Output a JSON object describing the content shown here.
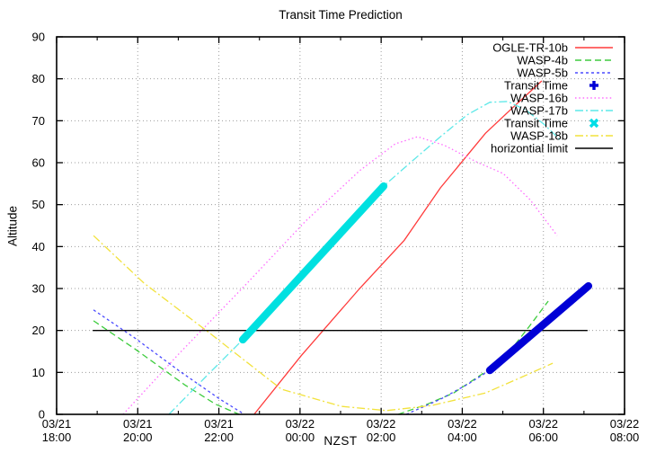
{
  "title": "Transit Time Prediction",
  "axes": {
    "xlabel": "NZST",
    "ylabel": "Altitude",
    "ylim": [
      0,
      90
    ],
    "yticks": [
      0,
      10,
      20,
      30,
      40,
      50,
      60,
      70,
      80,
      90
    ],
    "xticks": [
      {
        "date": "03/21",
        "time": "18:00",
        "hour": 0
      },
      {
        "date": "03/21",
        "time": "20:00",
        "hour": 2
      },
      {
        "date": "03/21",
        "time": "22:00",
        "hour": 4
      },
      {
        "date": "03/22",
        "time": "00:00",
        "hour": 6
      },
      {
        "date": "03/22",
        "time": "02:00",
        "hour": 8
      },
      {
        "date": "03/22",
        "time": "04:00",
        "hour": 10
      },
      {
        "date": "03/22",
        "time": "06:00",
        "hour": 12
      },
      {
        "date": "03/22",
        "time": "08:00",
        "hour": 14
      }
    ],
    "minor_xticks_hours": [
      1,
      3,
      5,
      7,
      9,
      11,
      13
    ],
    "grid": true
  },
  "style": {
    "background": "#ffffff",
    "axis_color": "#000000",
    "grid_color": "#9d9d9d",
    "text_color": "#000000"
  },
  "legend": {
    "position": "top-right-inside",
    "items": [
      {
        "label": "OGLE-TR-10b",
        "kind": "line",
        "color": "#ff3b3b",
        "dash": "solid"
      },
      {
        "label": "WASP-4b",
        "kind": "line",
        "color": "#3ecc3e",
        "dash": "7,4"
      },
      {
        "label": "WASP-5b",
        "kind": "line",
        "color": "#4a4aff",
        "dash": "3,3"
      },
      {
        "label": "Transit Time",
        "kind": "marker-plus",
        "color": "#0000d6",
        "dash": "solid"
      },
      {
        "label": "WASP-16b",
        "kind": "line",
        "color": "#ff6bff",
        "dash": "1.5,2.8"
      },
      {
        "label": "WASP-17b",
        "kind": "line",
        "color": "#5ce8e8",
        "dash": "9,3,2,3"
      },
      {
        "label": "Transit Time",
        "kind": "marker-x",
        "color": "#00dde6",
        "dash": "solid"
      },
      {
        "label": "WASP-18b",
        "kind": "line",
        "color": "#f2e23c",
        "dash": "9,3,2,3"
      },
      {
        "label": "horizontial limit",
        "kind": "line",
        "color": "#000000",
        "dash": "solid"
      }
    ]
  },
  "chart_data": {
    "type": "line",
    "title": "Transit Time Prediction",
    "xlabel": "NZST",
    "ylabel": "Altitude",
    "x_unit": "hours after 03/21 18:00 NZST",
    "x_range_hours": [
      0,
      14
    ],
    "ylim": [
      0,
      90
    ],
    "series": [
      {
        "name": "OGLE-TR-10b",
        "color": "#ff3b3b",
        "dash": "solid",
        "width": 1.3,
        "segments": [
          [
            [
              4.87,
              0
            ],
            [
              6.03,
              14
            ],
            [
              7.47,
              30
            ],
            [
              8.57,
              41.5
            ],
            [
              9.46,
              54
            ],
            [
              10.57,
              67
            ],
            [
              11.23,
              73
            ],
            [
              11.96,
              79.5
            ]
          ]
        ]
      },
      {
        "name": "WASP-4b",
        "color": "#3ecc3e",
        "dash": "7,4",
        "width": 1.3,
        "segments": [
          [
            [
              0.91,
              22.3
            ],
            [
              1.93,
              15.6
            ],
            [
              3.15,
              7.1
            ],
            [
              3.92,
              2.4
            ],
            [
              4.5,
              0
            ]
          ],
          [
            [
              8.42,
              0
            ],
            [
              9.13,
              2.4
            ],
            [
              9.79,
              5.1
            ],
            [
              10.46,
              9.4
            ],
            [
              11.12,
              14.4
            ],
            [
              11.67,
              21.2
            ],
            [
              12.12,
              27
            ]
          ]
        ]
      },
      {
        "name": "WASP-5b",
        "color": "#4a4aff",
        "dash": "3,3",
        "width": 1.3,
        "segments": [
          [
            [
              0.91,
              24.9
            ],
            [
              1.93,
              18.2
            ],
            [
              3.03,
              10.3
            ],
            [
              4.03,
              3.6
            ],
            [
              4.63,
              0
            ]
          ],
          [
            [
              8.62,
              0
            ],
            [
              9.46,
              3.6
            ],
            [
              10.12,
              7.1
            ],
            [
              10.68,
              10.5
            ],
            [
              13.11,
              30.6
            ]
          ]
        ]
      },
      {
        "name": "WASP-16b",
        "color": "#ff6bff",
        "dash": "1.5,2.8",
        "width": 1.3,
        "segments": [
          [
            [
              1.64,
              0
            ],
            [
              3.03,
              14.6
            ],
            [
              4.59,
              30.2
            ],
            [
              6.14,
              46.1
            ],
            [
              7.47,
              58.1
            ],
            [
              8.35,
              64.5
            ],
            [
              8.9,
              66.2
            ],
            [
              9.57,
              64.1
            ],
            [
              10.35,
              60.2
            ],
            [
              11.01,
              57.4
            ],
            [
              11.67,
              51.2
            ],
            [
              12.34,
              42.6
            ]
          ]
        ]
      },
      {
        "name": "WASP-17b",
        "color": "#5ce8e8",
        "dash": "9,3,2,3",
        "width": 1.3,
        "segments": [
          [
            [
              2.77,
              0
            ],
            [
              3.7,
              9.2
            ],
            [
              4.59,
              17.8
            ],
            [
              6.36,
              37.1
            ],
            [
              8.06,
              54.4
            ],
            [
              8.79,
              60.6
            ],
            [
              9.46,
              66.2
            ],
            [
              10.12,
              71.4
            ],
            [
              10.68,
              74.4
            ],
            [
              11.12,
              74.6
            ],
            [
              11.56,
              72.6
            ],
            [
              12.01,
              69.2
            ],
            [
              12.45,
              65.1
            ]
          ]
        ]
      },
      {
        "name": "WASP-18b",
        "color": "#f2e23c",
        "dash": "9,3,2,3",
        "width": 1.3,
        "segments": [
          [
            [
              0.91,
              42.6
            ],
            [
              2.15,
              31.3
            ],
            [
              3.81,
              19.1
            ],
            [
              5.54,
              6
            ],
            [
              7.02,
              1.9
            ],
            [
              8.13,
              0.9
            ],
            [
              9.24,
              2.1
            ],
            [
              10.57,
              5.1
            ],
            [
              11.45,
              8.8
            ],
            [
              12.23,
              12.2
            ]
          ]
        ]
      },
      {
        "name": "horizontial limit",
        "color": "#000000",
        "dash": "solid",
        "width": 1.3,
        "segments": [
          [
            [
              0.89,
              20
            ],
            [
              13.09,
              20
            ]
          ]
        ]
      },
      {
        "name": "Transit Time (WASP-5b)",
        "color": "#0000d6",
        "dash": "solid",
        "width": 8.5,
        "linecap": "round",
        "segments": [
          [
            [
              10.68,
              10.5
            ],
            [
              13.11,
              30.6
            ]
          ]
        ]
      },
      {
        "name": "Transit Time (WASP-17b)",
        "color": "#00e0e0",
        "dash": "solid",
        "width": 8.5,
        "linecap": "round",
        "segments": [
          [
            [
              4.59,
              17.8
            ],
            [
              8.06,
              54.4
            ]
          ]
        ]
      }
    ]
  }
}
